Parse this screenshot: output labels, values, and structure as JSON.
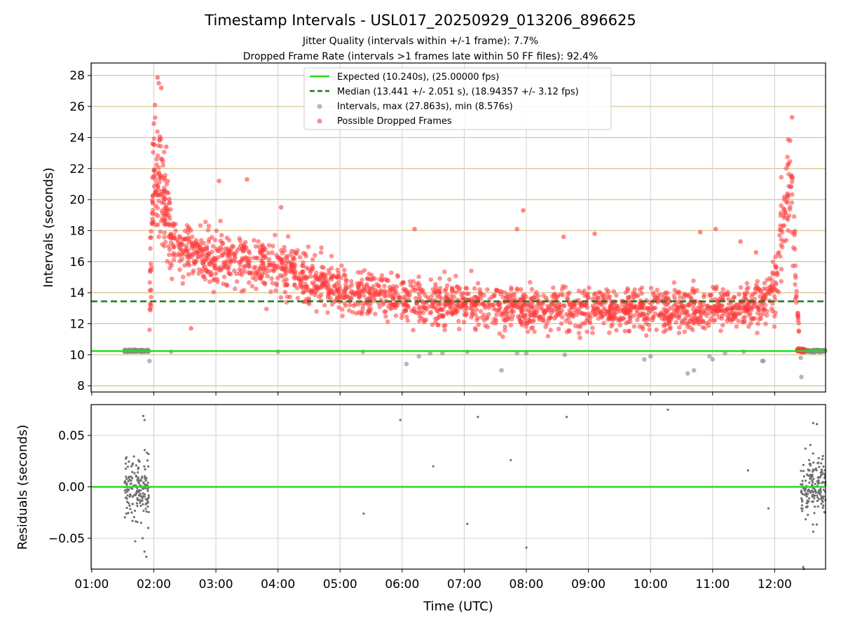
{
  "chart_data": {
    "type": "scatter",
    "title": "Timestamp Intervals - USL017_20250929_013206_896625",
    "subtitles": [
      "Jitter Quality (intervals within +/-1 frame): 7.7%",
      "Dropped Frame Rate (intervals >1 frames late within 50 FF files): 92.4%"
    ],
    "xlabel": "Time (UTC)",
    "x_ticks": [
      "01:00",
      "02:00",
      "03:00",
      "04:00",
      "05:00",
      "06:00",
      "07:00",
      "08:00",
      "09:00",
      "10:00",
      "11:00",
      "12:00"
    ],
    "xlim_hours": [
      0.99,
      12.82
    ],
    "panels": [
      {
        "name": "intervals",
        "ylabel": "Intervals (seconds)",
        "ylim": [
          7.6,
          28.8
        ],
        "yticks": [
          8,
          10,
          12,
          14,
          16,
          18,
          20,
          22,
          24,
          26,
          28
        ],
        "horizontal_lines": [
          {
            "name": "expected",
            "value": 10.24,
            "color": "#22dd22",
            "style": "solid"
          },
          {
            "name": "median",
            "value": 13.441,
            "color": "#1a7a1a",
            "style": "dashed"
          }
        ],
        "legend": {
          "position": "top-center",
          "entries": [
            {
              "label": "Expected (10.240s), (25.00000 fps)",
              "kind": "line",
              "color": "#22dd22"
            },
            {
              "label": "Median (13.441 +/- 2.051 s), (18.94357 +/- 3.12 fps)",
              "kind": "dashed",
              "color": "#1a7a1a"
            },
            {
              "label": "Intervals, max (27.863s), min (8.576s)",
              "kind": "marker",
              "color": "#888888"
            },
            {
              "label": "Possible Dropped Frames",
              "kind": "marker",
              "color": "#ff3b3b"
            }
          ]
        },
        "series": [
          {
            "name": "Intervals",
            "color": "#888888",
            "normal_band": {
              "segments": [
                [
                  1.53,
                  1.92
                ],
                [
                  12.42,
                  12.82
                ]
              ],
              "center": 10.25,
              "spread": 0.05
            },
            "outliers": [
              [
                1.93,
                9.6
              ],
              [
                2.28,
                10.2
              ],
              [
                4.0,
                10.2
              ],
              [
                5.37,
                10.2
              ],
              [
                6.07,
                9.4
              ],
              [
                6.27,
                9.9
              ],
              [
                6.45,
                10.1
              ],
              [
                6.65,
                10.1
              ],
              [
                7.05,
                10.2
              ],
              [
                7.6,
                9.0
              ],
              [
                7.85,
                10.1
              ],
              [
                8.0,
                10.1
              ],
              [
                8.62,
                10.0
              ],
              [
                9.9,
                9.7
              ],
              [
                10.0,
                9.9
              ],
              [
                10.6,
                8.8
              ],
              [
                10.7,
                9.0
              ],
              [
                10.95,
                9.9
              ],
              [
                11.0,
                9.7
              ],
              [
                11.2,
                10.1
              ],
              [
                11.5,
                10.2
              ],
              [
                11.8,
                9.6
              ],
              [
                11.82,
                9.6
              ],
              [
                12.42,
                9.8
              ],
              [
                12.43,
                8.576
              ]
            ]
          },
          {
            "name": "Possible Dropped Frames",
            "color": "#ff3b3b",
            "density_profile": [
              [
                1.93,
                12.5
              ],
              [
                2.0,
                21.5
              ],
              [
                2.1,
                21.0
              ],
              [
                2.3,
                17.5
              ],
              [
                2.6,
                16.6
              ],
              [
                3.0,
                16.3
              ],
              [
                3.5,
                16.0
              ],
              [
                4.0,
                15.6
              ],
              [
                4.5,
                15.0
              ],
              [
                5.0,
                14.1
              ],
              [
                6.0,
                13.6
              ],
              [
                7.0,
                13.2
              ],
              [
                8.0,
                13.0
              ],
              [
                9.0,
                13.0
              ],
              [
                10.0,
                12.9
              ],
              [
                11.0,
                13.0
              ],
              [
                11.7,
                13.2
              ],
              [
                12.0,
                14.2
              ],
              [
                12.1,
                17.5
              ],
              [
                12.22,
                21.0
              ],
              [
                12.28,
                20.0
              ],
              [
                12.35,
                14.0
              ],
              [
                12.4,
                10.8
              ]
            ],
            "extreme_points": [
              [
                2.06,
                27.863
              ],
              [
                2.08,
                27.5
              ],
              [
                2.12,
                27.2
              ],
              [
                2.02,
                26.1
              ],
              [
                2.0,
                24.9
              ],
              [
                1.98,
                23.6
              ],
              [
                2.2,
                23.4
              ],
              [
                3.05,
                21.2
              ],
              [
                3.5,
                21.3
              ],
              [
                2.6,
                11.7
              ],
              [
                4.05,
                19.5
              ],
              [
                7.95,
                19.3
              ],
              [
                8.6,
                17.6
              ],
              [
                9.1,
                17.8
              ],
              [
                10.8,
                17.9
              ],
              [
                11.05,
                18.1
              ],
              [
                11.45,
                17.3
              ],
              [
                11.7,
                16.6
              ],
              [
                12.28,
                25.3
              ],
              [
                12.25,
                23.8
              ],
              [
                12.22,
                22.3
              ],
              [
                6.2,
                18.1
              ],
              [
                7.85,
                18.1
              ]
            ]
          }
        ]
      },
      {
        "name": "residuals",
        "ylabel": "Residuals (seconds)",
        "ylim": [
          -0.08,
          0.08
        ],
        "yticks": [
          0.05,
          0.0,
          -0.05
        ],
        "ytick_labels": [
          "0.05",
          "0.00",
          "−0.05"
        ],
        "horizontal_lines": [
          {
            "name": "zero",
            "value": 0.0,
            "color": "#22dd22",
            "style": "solid"
          }
        ],
        "series": [
          {
            "name": "Residuals",
            "color": "#707070",
            "clusters": [
              {
                "x": [
                  1.53,
                  1.92
                ],
                "spread": 0.034
              },
              {
                "x": [
                  12.42,
                  12.82
                ],
                "spread": 0.034
              }
            ],
            "points": [
              [
                1.83,
                0.069
              ],
              [
                1.85,
                0.065
              ],
              [
                1.82,
                -0.05
              ],
              [
                1.85,
                -0.063
              ],
              [
                1.88,
                -0.068
              ],
              [
                1.7,
                -0.053
              ],
              [
                5.38,
                -0.026
              ],
              [
                5.97,
                0.065
              ],
              [
                6.5,
                0.02
              ],
              [
                7.05,
                -0.036
              ],
              [
                7.22,
                0.068
              ],
              [
                7.75,
                0.026
              ],
              [
                8.0,
                -0.059
              ],
              [
                8.65,
                0.068
              ],
              [
                10.28,
                0.075
              ],
              [
                11.57,
                0.016
              ],
              [
                11.9,
                -0.021
              ],
              [
                12.46,
                -0.078
              ],
              [
                12.47,
                -0.08
              ],
              [
                12.62,
                0.062
              ],
              [
                12.68,
                0.061
              ]
            ]
          }
        ]
      }
    ]
  }
}
